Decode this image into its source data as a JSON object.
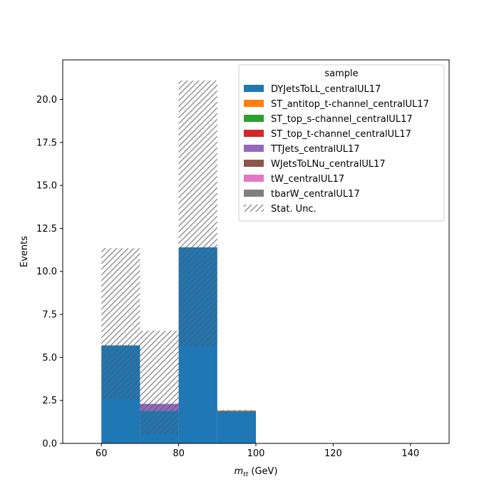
{
  "chart_data": {
    "type": "bar",
    "stacked": true,
    "bin_edges": [
      60,
      70,
      80,
      90,
      100
    ],
    "xlim": [
      50,
      150
    ],
    "ylim": [
      0,
      22.3
    ],
    "xticks": [
      60,
      80,
      100,
      120,
      140
    ],
    "yticks": [
      0.0,
      2.5,
      5.0,
      7.5,
      10.0,
      12.5,
      15.0,
      17.5,
      20.0
    ],
    "xticklabels": [
      "60",
      "80",
      "100",
      "120",
      "140"
    ],
    "yticklabels": [
      "0.0",
      "2.5",
      "5.0",
      "7.5",
      "10.0",
      "12.5",
      "15.0",
      "17.5",
      "20.0"
    ],
    "ylabel": "Events",
    "xlabel_base": "m",
    "xlabel_sub": "tt",
    "xlabel_unit": " (GeV)",
    "grid": false,
    "legend_title": "sample",
    "legend_loc": "upper-right",
    "series": [
      {
        "name": "DYJetsToLL_centralUL17",
        "color": "#1f77b4",
        "values": [
          5.7,
          1.9,
          11.4,
          1.88
        ]
      },
      {
        "name": "ST_antitop_t-channel_centralUL17",
        "color": "#ff7f0e",
        "values": [
          0,
          0,
          0,
          0.04
        ]
      },
      {
        "name": "ST_top_s-channel_centralUL17",
        "color": "#2ca02c",
        "values": [
          0,
          0,
          0,
          0
        ]
      },
      {
        "name": "ST_top_t-channel_centralUL17",
        "color": "#d62728",
        "values": [
          0,
          0,
          0,
          0
        ]
      },
      {
        "name": "TTJets_centralUL17",
        "color": "#9467bd",
        "values": [
          0,
          0.4,
          0,
          0
        ]
      },
      {
        "name": "WJetsToLNu_centralUL17",
        "color": "#8c564b",
        "values": [
          0,
          0,
          0,
          0
        ]
      },
      {
        "name": "tW_centralUL17",
        "color": "#e377c2",
        "values": [
          0,
          0,
          0,
          0
        ]
      },
      {
        "name": "tbarW_centralUL17",
        "color": "#7f7f7f",
        "values": [
          0,
          0,
          0,
          0
        ]
      }
    ],
    "stat_unc": {
      "name": "Stat. Unc.",
      "low": [
        2.55,
        0.55,
        5.65,
        1.9
      ],
      "high": [
        11.35,
        6.55,
        21.1,
        1.95
      ]
    }
  }
}
